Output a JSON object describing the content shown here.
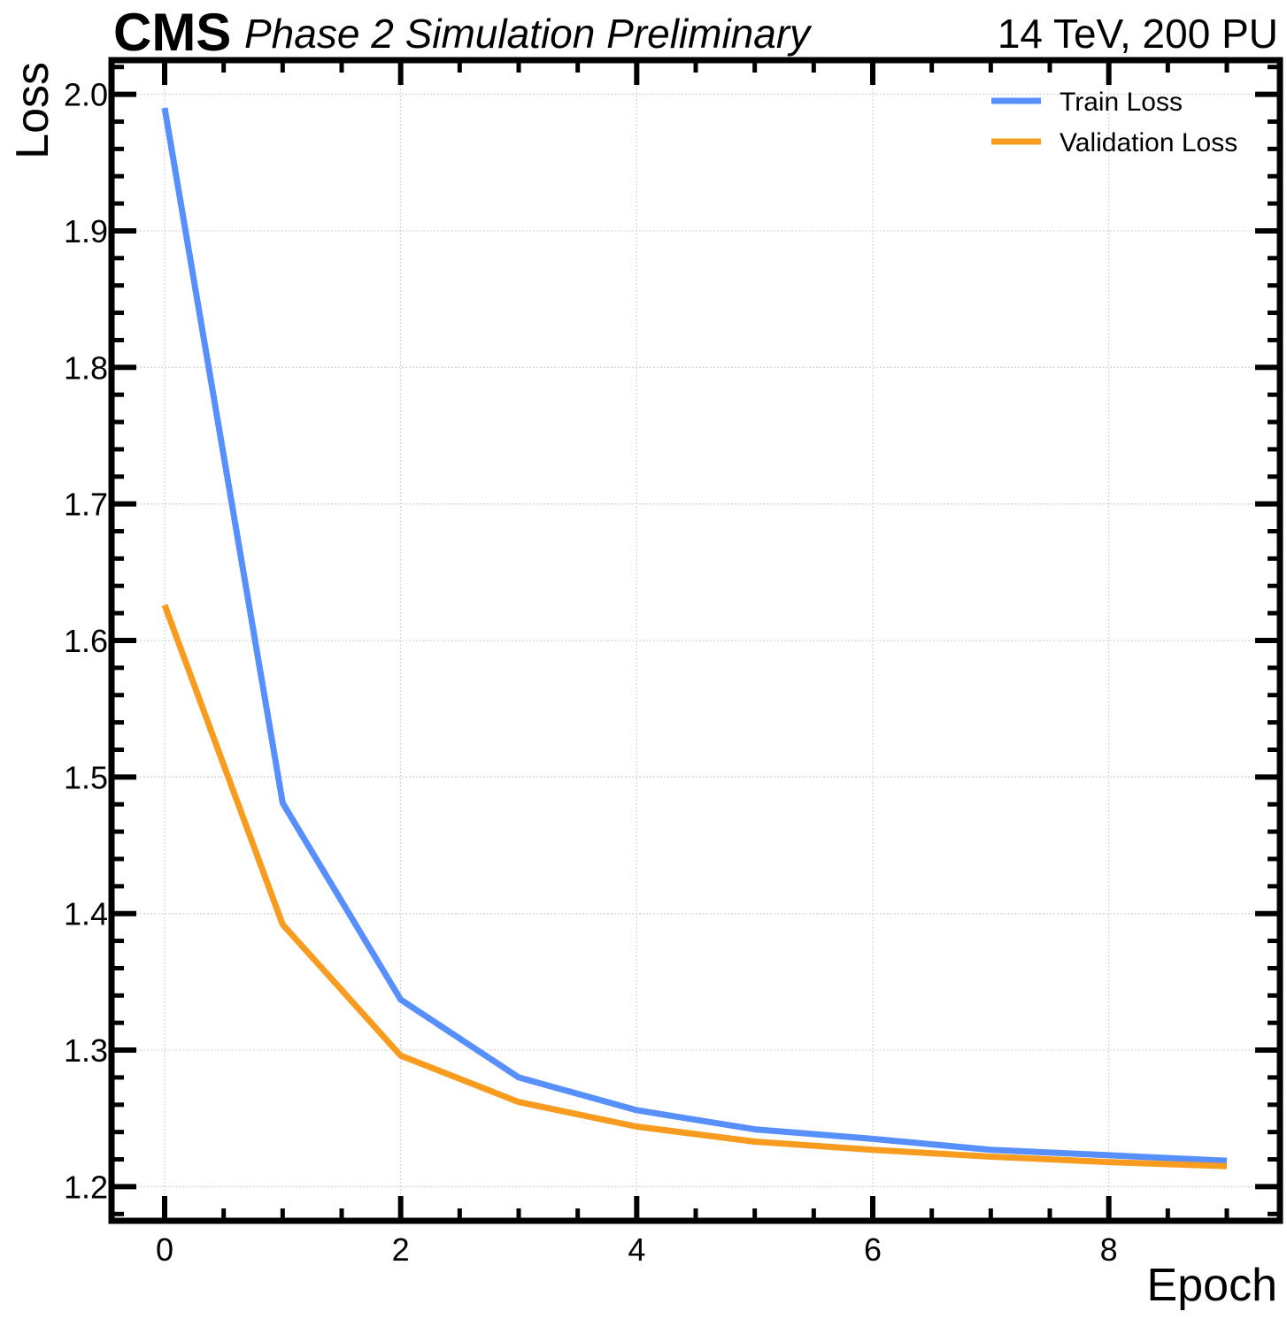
{
  "header": {
    "experiment": "CMS",
    "status": "Phase 2 Simulation Preliminary",
    "conditions": "14 TeV, 200 PU"
  },
  "chart_data": {
    "type": "line",
    "title": "",
    "xlabel": "Epoch",
    "ylabel": "Loss",
    "xlim": [
      -0.45,
      9.45
    ],
    "ylim": [
      1.175,
      2.025
    ],
    "xticks": [
      0,
      2,
      4,
      6,
      8
    ],
    "xtick_labels": [
      "0",
      "2",
      "4",
      "6",
      "8"
    ],
    "xminor_step": 0.5,
    "yticks": [
      1.2,
      1.3,
      1.4,
      1.5,
      1.6,
      1.7,
      1.8,
      1.9,
      2.0
    ],
    "ytick_labels": [
      "1.2",
      "1.3",
      "1.4",
      "1.5",
      "1.6",
      "1.7",
      "1.8",
      "1.9",
      "2.0"
    ],
    "yminor_step": 0.02,
    "grid": true,
    "legend_position": "top-right",
    "x": [
      0,
      1,
      2,
      3,
      4,
      5,
      6,
      7,
      8,
      9
    ],
    "series": [
      {
        "name": "Train Loss",
        "color": "#5790fc",
        "values": [
          1.99,
          1.481,
          1.337,
          1.28,
          1.256,
          1.242,
          1.235,
          1.227,
          1.223,
          1.219
        ]
      },
      {
        "name": "Validation Loss",
        "color": "#f89c20",
        "values": [
          1.626,
          1.392,
          1.296,
          1.262,
          1.244,
          1.233,
          1.227,
          1.222,
          1.218,
          1.215
        ]
      }
    ]
  }
}
